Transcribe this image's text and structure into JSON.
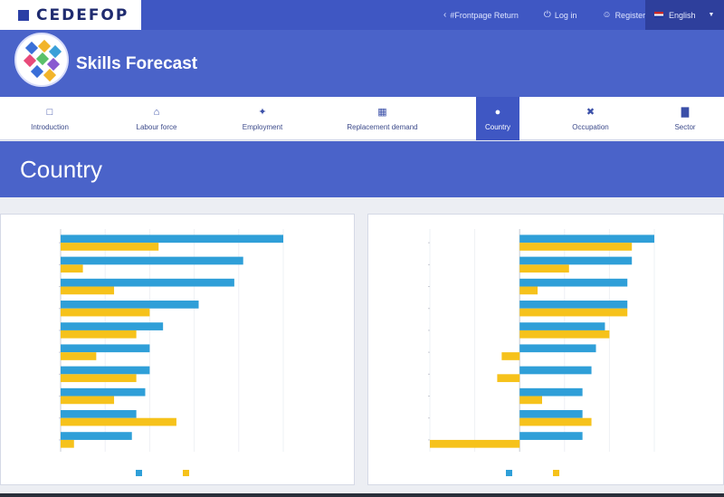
{
  "header": {
    "logo_text": "CEDEFOP",
    "links": [
      {
        "icon": "back-arrow-icon",
        "label": "#Frontpage Return"
      },
      {
        "icon": "login-icon",
        "label": "Log in"
      },
      {
        "icon": "user-icon",
        "label": "Register"
      }
    ],
    "language": "English"
  },
  "brand": {
    "title": "Skills Forecast"
  },
  "nav": {
    "items": [
      {
        "icon": "document-icon",
        "label": "Introduction",
        "active": false
      },
      {
        "icon": "workforce-icon",
        "label": "Labour force",
        "active": false
      },
      {
        "icon": "employment-icon",
        "label": "Employment",
        "active": false
      },
      {
        "icon": "calculator-icon",
        "label": "Replacement demand",
        "active": false
      },
      {
        "icon": "globe-icon",
        "label": "Country",
        "active": true
      },
      {
        "icon": "tools-icon",
        "label": "Occupation",
        "active": false
      },
      {
        "icon": "bar-chart-icon",
        "label": "Sector",
        "active": false
      }
    ]
  },
  "page": {
    "title": "Country"
  },
  "colors": {
    "series1": "#2f9fd8",
    "series2": "#f6c21b",
    "header": "#3f57c3",
    "accent": "#4a63c9"
  },
  "chart_data": [
    {
      "type": "bar",
      "orientation": "horizontal",
      "categories": [
        "",
        "",
        "",
        "",
        "",
        "",
        "",
        "",
        "",
        ""
      ],
      "series": [
        {
          "name": "",
          "values": [
            50,
            41,
            39,
            31,
            23,
            20,
            20,
            19,
            17,
            16
          ]
        },
        {
          "name": "",
          "values": [
            22,
            5,
            12,
            20,
            17,
            8,
            17,
            12,
            26,
            3
          ]
        }
      ],
      "xlim": [
        0,
        50
      ],
      "xticks": [
        "",
        "",
        "",
        "",
        "",
        ""
      ],
      "legend": "bottom"
    },
    {
      "type": "bar",
      "orientation": "horizontal",
      "categories": [
        "",
        "",
        "",
        "",
        "",
        "",
        "",
        "",
        "",
        ""
      ],
      "series": [
        {
          "name": "",
          "values": [
            30,
            25,
            24,
            24,
            19,
            17,
            16,
            14,
            14,
            14
          ]
        },
        {
          "name": "",
          "values": [
            25,
            11,
            4,
            24,
            20,
            -4,
            -5,
            5,
            16,
            -20
          ]
        }
      ],
      "xlim": [
        -20,
        30
      ],
      "xticks": [
        "",
        "",
        "",
        "",
        "",
        ""
      ],
      "legend": "bottom"
    }
  ]
}
